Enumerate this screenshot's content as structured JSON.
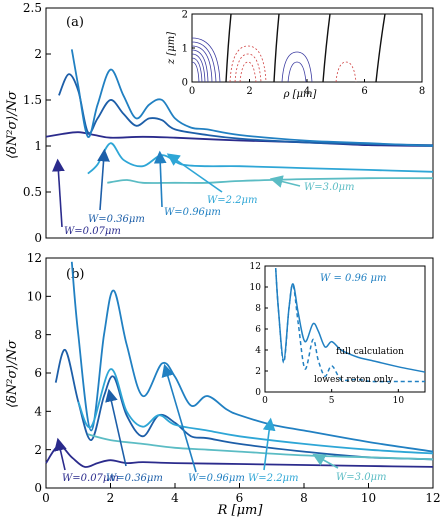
{
  "chart_data": [
    {
      "type": "line",
      "panel_label": "(a)",
      "ylabel": "⟨δN²σ⟩/Nσ",
      "xlim": [
        0,
        12
      ],
      "ylim": [
        0,
        2.5
      ],
      "yticks": [
        "0",
        "0.5",
        "1",
        "1.5",
        "2",
        "2.5"
      ],
      "series": [
        {
          "name": "W=0.07μm",
          "color": "#2b2b8c",
          "x": [
            0,
            0.5,
            1,
            1.5,
            2,
            3,
            4,
            6,
            8,
            10,
            12
          ],
          "y": [
            1.1,
            1.13,
            1.15,
            1.12,
            1.09,
            1.1,
            1.09,
            1.06,
            1.04,
            1.01,
            1.0
          ]
        },
        {
          "name": "W=0.36μm",
          "color": "#1d5ea8",
          "x": [
            0.4,
            0.7,
            1.0,
            1.3,
            1.6,
            2.0,
            2.4,
            2.8,
            3.2,
            3.6,
            4.0,
            5.0,
            6.0,
            8.0,
            10.0,
            12.0
          ],
          "y": [
            1.55,
            1.78,
            1.6,
            1.15,
            1.3,
            1.5,
            1.35,
            1.22,
            1.3,
            1.28,
            1.18,
            1.12,
            1.08,
            1.04,
            1.02,
            1.01
          ]
        },
        {
          "name": "W=0.96μm",
          "color": "#2180c2",
          "x": [
            0.8,
            1.0,
            1.3,
            1.6,
            2.0,
            2.4,
            2.8,
            3.2,
            3.6,
            4.0,
            4.5,
            5.0,
            6.0,
            8.0,
            10.0,
            12.0
          ],
          "y": [
            2.05,
            1.65,
            1.1,
            1.45,
            1.83,
            1.55,
            1.3,
            1.45,
            1.5,
            1.3,
            1.2,
            1.18,
            1.12,
            1.06,
            1.03,
            1.0
          ]
        },
        {
          "name": "W=2.2μm",
          "color": "#2ea6d6",
          "x": [
            1.3,
            1.6,
            2.0,
            2.4,
            3.0,
            3.6,
            4.2,
            5.0,
            6.0,
            8.0,
            10.0,
            12.0
          ],
          "y": [
            0.7,
            0.8,
            1.03,
            0.85,
            0.78,
            0.9,
            0.8,
            0.78,
            0.78,
            0.76,
            0.74,
            0.72
          ]
        },
        {
          "name": "W=3.0μm",
          "color": "#5bbcc4",
          "x": [
            1.9,
            2.5,
            3.0,
            4.0,
            5.0,
            6.0,
            8.0,
            10.0,
            12.0
          ],
          "y": [
            0.6,
            0.63,
            0.6,
            0.6,
            0.6,
            0.62,
            0.64,
            0.65,
            0.65
          ]
        }
      ],
      "inset": {
        "xlabel": "ρ [μm]",
        "ylabel": "z [μm]",
        "xlim": [
          0,
          8
        ],
        "ylim": [
          0,
          2
        ],
        "xticks": [
          "0",
          "2",
          "4",
          "6",
          "8"
        ],
        "yticks": [
          "0",
          "1",
          "2"
        ]
      }
    },
    {
      "type": "line",
      "panel_label": "(b)",
      "xlabel": "R [μm]",
      "ylabel": "⟨δN²σ⟩/Nσ",
      "xlim": [
        0,
        12
      ],
      "ylim": [
        0,
        12
      ],
      "xticks": [
        "0",
        "2",
        "4",
        "6",
        "8",
        "10",
        "12"
      ],
      "yticks": [
        "0",
        "2",
        "4",
        "6",
        "8",
        "10",
        "12"
      ],
      "series": [
        {
          "name": "W=0.07μm",
          "color": "#2b2b8c",
          "x": [
            0,
            0.4,
            0.8,
            1.2,
            1.6,
            2.0,
            2.5,
            3.0,
            4.0,
            6.0,
            8.0,
            10.0,
            12.0
          ],
          "y": [
            1.3,
            2.2,
            1.6,
            1.1,
            1.3,
            1.45,
            1.3,
            1.35,
            1.3,
            1.25,
            1.2,
            1.15,
            1.1
          ]
        },
        {
          "name": "W=0.36μm",
          "color": "#1d5ea8",
          "x": [
            0.3,
            0.6,
            1.0,
            1.4,
            1.8,
            2.1,
            2.5,
            3.0,
            3.5,
            4.0,
            4.5,
            5.0,
            6.0,
            8.0,
            10.0,
            12.0
          ],
          "y": [
            5.5,
            7.2,
            4.5,
            2.5,
            4.8,
            5.8,
            3.8,
            2.7,
            3.8,
            3.4,
            2.7,
            2.6,
            2.3,
            1.9,
            1.6,
            1.5
          ]
        },
        {
          "name": "W=0.96μm",
          "color": "#2180c2",
          "x": [
            0.8,
            1.0,
            1.4,
            1.8,
            2.1,
            2.5,
            3.0,
            3.6,
            4.0,
            4.5,
            5.0,
            5.6,
            6.0,
            7.0,
            8.0,
            10.0,
            12.0
          ],
          "y": [
            11.8,
            8.0,
            3.0,
            8.0,
            10.3,
            7.5,
            4.8,
            6.5,
            5.8,
            4.3,
            4.8,
            4.1,
            3.8,
            3.3,
            3.0,
            2.4,
            1.9
          ]
        },
        {
          "name": "W=2.2μm",
          "color": "#2ea6d6",
          "x": [
            1.0,
            1.4,
            2.0,
            2.5,
            3.0,
            3.5,
            4.0,
            5.0,
            6.0,
            8.0,
            10.0,
            12.0
          ],
          "y": [
            4.5,
            3.2,
            6.2,
            4.0,
            3.2,
            3.8,
            3.3,
            3.0,
            2.7,
            2.3,
            2.0,
            1.8
          ]
        },
        {
          "name": "W=3.0μm",
          "color": "#5bbcc4",
          "x": [
            1.3,
            2.0,
            3.0,
            4.0,
            5.0,
            6.0,
            8.0,
            10.0,
            12.0
          ],
          "y": [
            2.8,
            2.5,
            2.3,
            2.1,
            2.0,
            1.9,
            1.7,
            1.6,
            1.5
          ]
        }
      ],
      "inset": {
        "title": "W = 0.96 μm",
        "xlim": [
          0,
          12
        ],
        "ylim": [
          0,
          12
        ],
        "xticks": [
          "0",
          "5",
          "10"
        ],
        "yticks": [
          "0",
          "2",
          "4",
          "6",
          "8",
          "10",
          "12"
        ],
        "series": [
          {
            "name": "full calculation",
            "style": "solid",
            "x": [
              0.8,
              1.0,
              1.4,
              1.8,
              2.1,
              2.5,
              3.0,
              3.6,
              4.0,
              4.5,
              5.0,
              5.6,
              6.0,
              7.0,
              8.0,
              10.0,
              12.0
            ],
            "y": [
              11.8,
              8.0,
              3.0,
              8.0,
              10.3,
              7.5,
              4.8,
              6.5,
              5.8,
              4.3,
              4.8,
              4.1,
              3.8,
              3.3,
              3.0,
              2.4,
              1.9
            ]
          },
          {
            "name": "lowest roton only",
            "style": "dashed",
            "x": [
              0.8,
              1.0,
              1.4,
              1.8,
              2.1,
              2.5,
              3.0,
              3.6,
              4.0,
              4.5,
              5.0,
              5.6,
              6.0,
              7.0,
              8.0,
              10.0,
              12.0
            ],
            "y": [
              11.8,
              8.0,
              2.8,
              8.0,
              10.2,
              6.5,
              2.2,
              5.0,
              3.0,
              1.5,
              2.5,
              1.3,
              1.1,
              1.2,
              1.0,
              1.0,
              1.0
            ]
          }
        ]
      }
    }
  ]
}
